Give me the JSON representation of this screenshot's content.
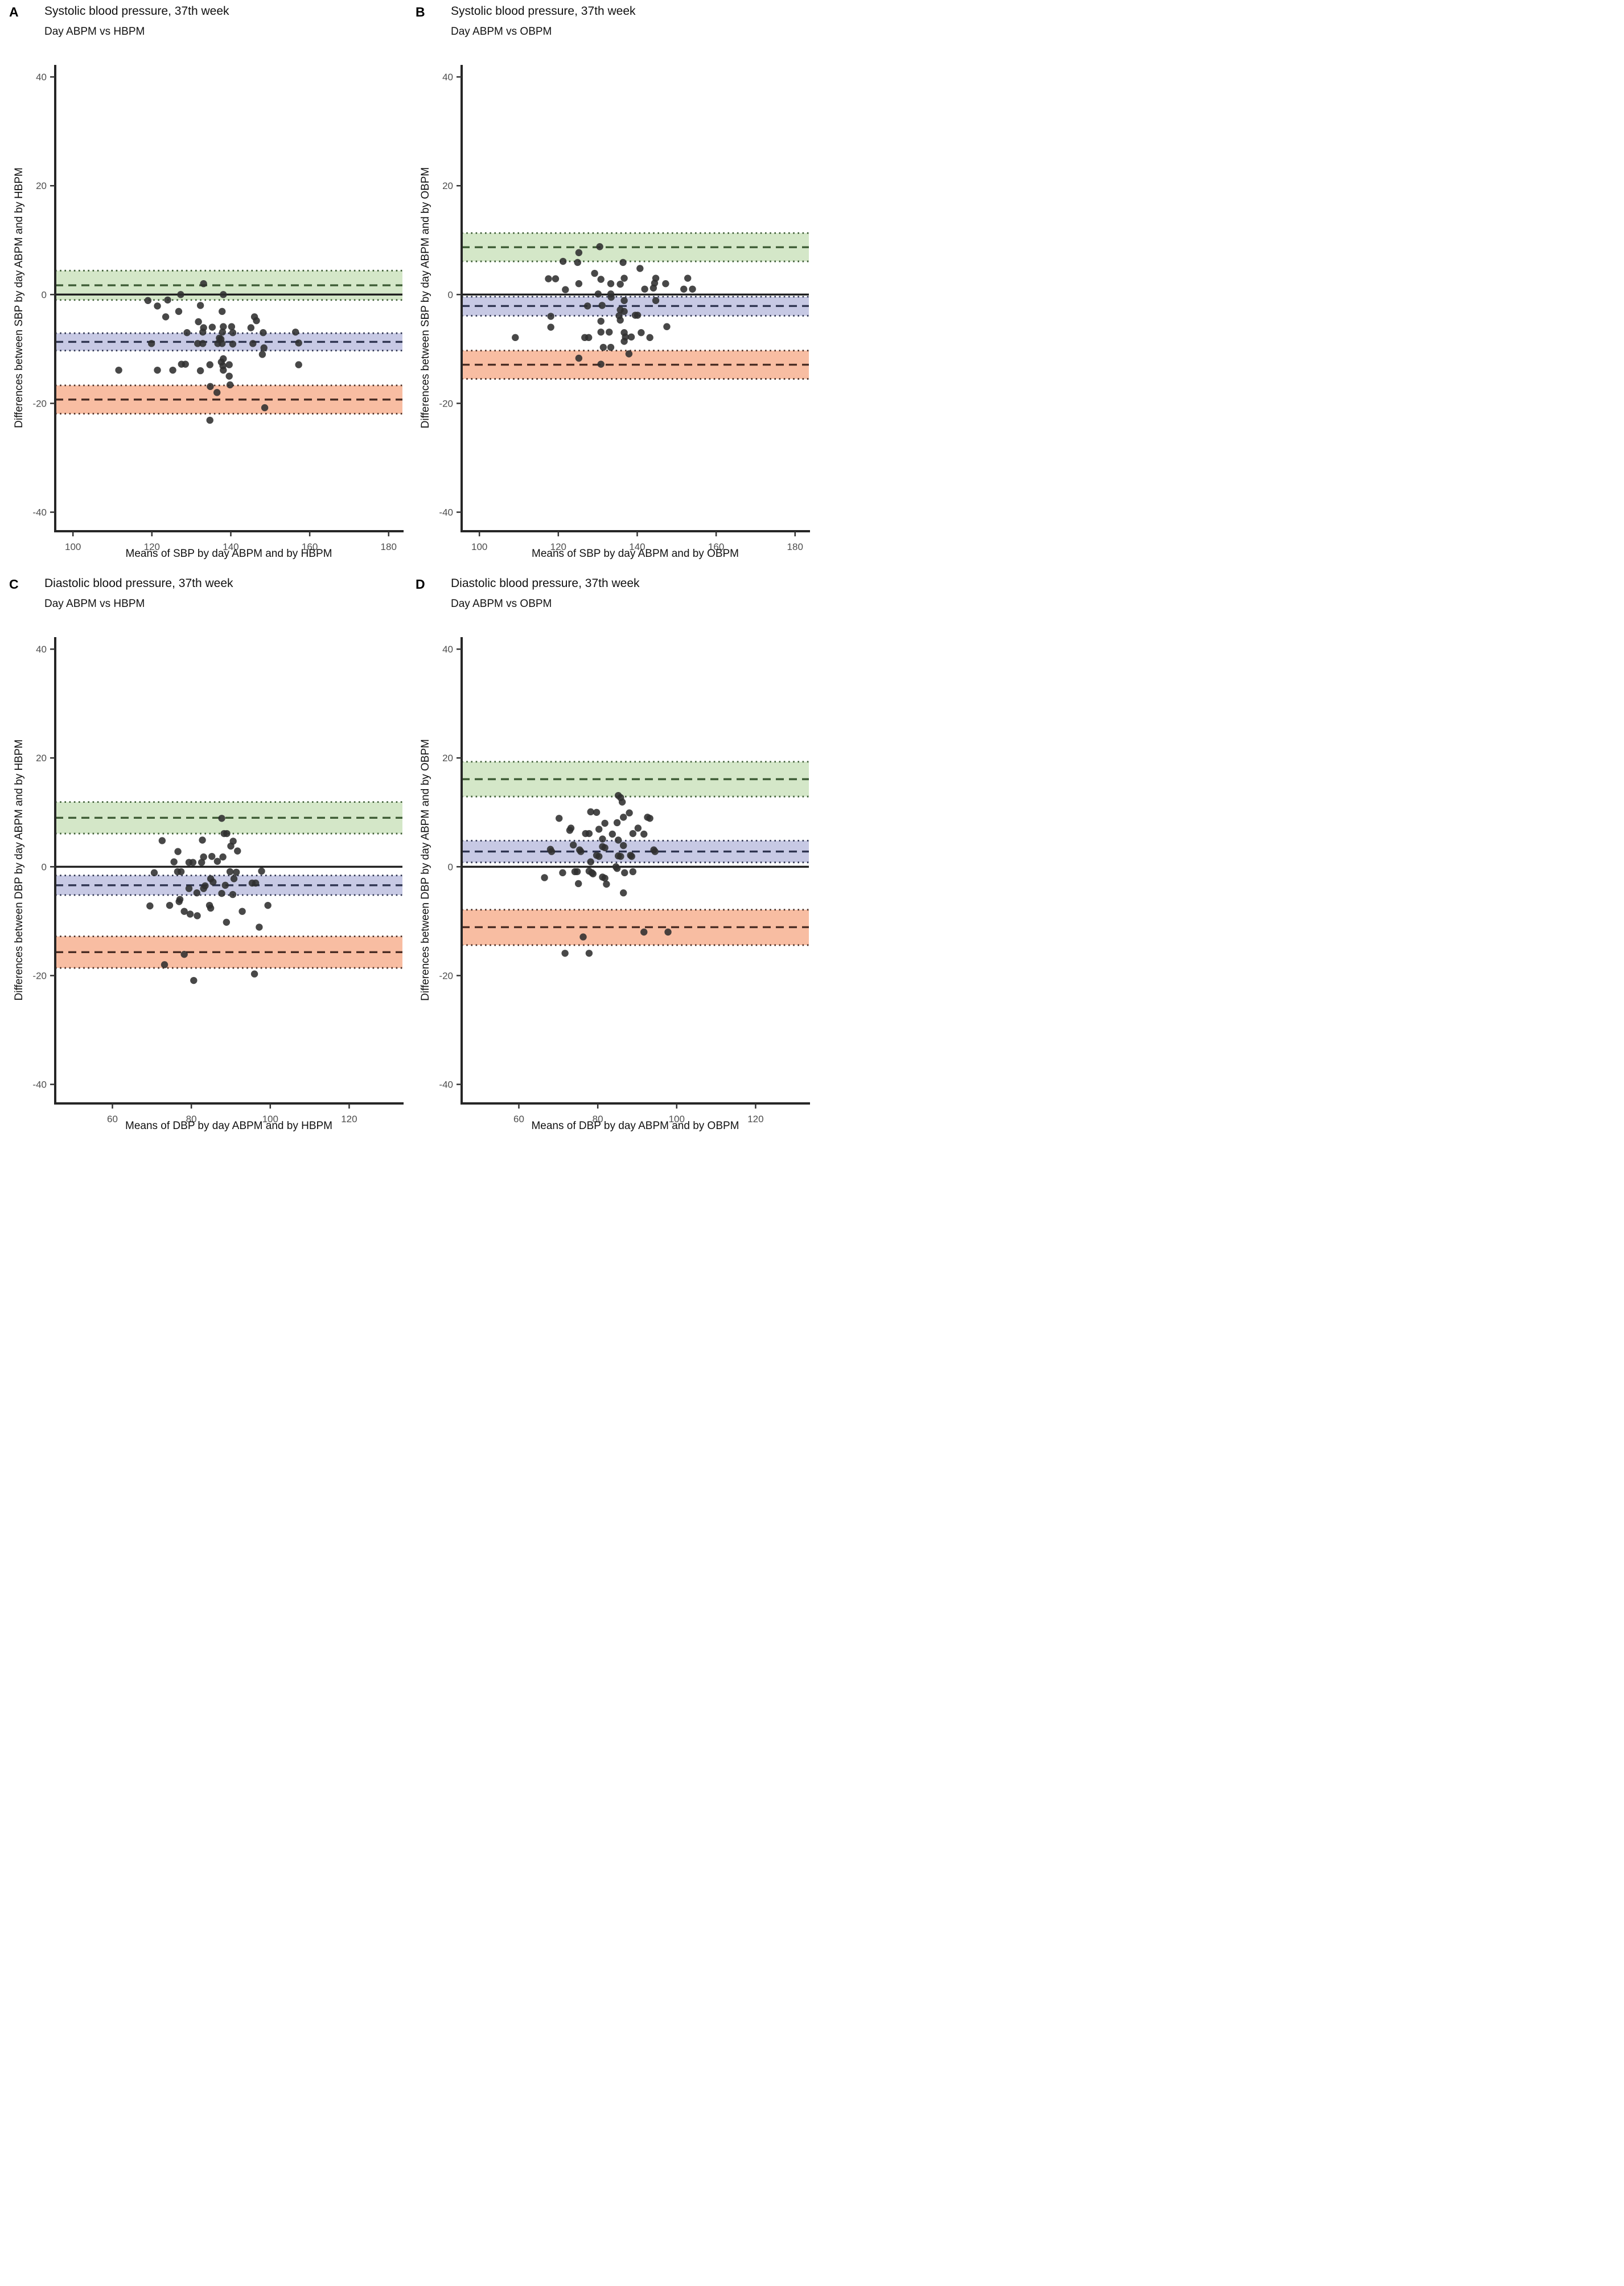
{
  "figure": {
    "background": "#ffffff",
    "point_color": "#2f2f2f",
    "axis_color": "#262626",
    "tick_label_color": "#4d4d4d",
    "zero_line_color": "#1f1f1f"
  },
  "chart_data": [
    {
      "panel_label": "A",
      "type": "scatter",
      "title": "Systolic blood pressure, 37th week",
      "subtitle": "Day ABPM vs HBPM",
      "xlabel": "Means of SBP by day ABPM and by HBPM",
      "ylabel": "Differences between SBP by day ABPM and by HBPM",
      "xlim": [
        95.5,
        183.5
      ],
      "ylim": [
        -43.5,
        42
      ],
      "x_ticks": [
        100,
        120,
        140,
        160,
        180
      ],
      "y_ticks": [
        40,
        20,
        0,
        -20,
        -40
      ],
      "zero_line": 0,
      "legend": "none",
      "grid": "off",
      "bands": {
        "upper_loa": {
          "mean": 1.7,
          "ci": [
            -1.0,
            4.4
          ],
          "fill": "#d4e7c8",
          "line": "#3d5c35"
        },
        "bias": {
          "mean": -8.7,
          "ci": [
            -10.3,
            -7.1
          ],
          "fill": "#c7c9e4",
          "line": "#2e3450"
        },
        "lower_loa": {
          "mean": -19.3,
          "ci": [
            -21.9,
            -16.7
          ],
          "fill": "#f8bda2",
          "line": "#4a2d24"
        }
      },
      "points": [
        [
          133.1,
          2
        ],
        [
          127.3,
          0
        ],
        [
          138.1,
          0
        ],
        [
          119,
          -1.1
        ],
        [
          124,
          -1
        ],
        [
          121.4,
          -2.1
        ],
        [
          132.3,
          -2
        ],
        [
          126.8,
          -3.1
        ],
        [
          137.8,
          -3.1
        ],
        [
          123.5,
          -4.1
        ],
        [
          146,
          -4.1
        ],
        [
          131.8,
          -5
        ],
        [
          146.5,
          -4.8
        ],
        [
          133.1,
          -6.1
        ],
        [
          135.3,
          -6
        ],
        [
          138.1,
          -5.9
        ],
        [
          140.2,
          -5.9
        ],
        [
          145.1,
          -6.1
        ],
        [
          132.9,
          -6.9
        ],
        [
          128.9,
          -7
        ],
        [
          137.9,
          -6.9
        ],
        [
          140.5,
          -7
        ],
        [
          148.2,
          -7
        ],
        [
          156.4,
          -6.9
        ],
        [
          137.1,
          -8
        ],
        [
          137.5,
          -8.2
        ],
        [
          119.9,
          -9
        ],
        [
          131.6,
          -9
        ],
        [
          132.9,
          -9
        ],
        [
          136.7,
          -9
        ],
        [
          137.8,
          -9
        ],
        [
          140.5,
          -9.1
        ],
        [
          145.6,
          -9
        ],
        [
          157.2,
          -8.9
        ],
        [
          148.4,
          -9.8
        ],
        [
          148,
          -11
        ],
        [
          138.1,
          -11.8
        ],
        [
          127.5,
          -12.8
        ],
        [
          128.5,
          -12.8
        ],
        [
          134.7,
          -12.9
        ],
        [
          137.6,
          -12.4
        ],
        [
          138,
          -13.1
        ],
        [
          139.6,
          -12.9
        ],
        [
          157.2,
          -12.9
        ],
        [
          111.6,
          -13.9
        ],
        [
          121.4,
          -13.9
        ],
        [
          125.3,
          -13.9
        ],
        [
          132.3,
          -14
        ],
        [
          138.1,
          -13.9
        ],
        [
          139.6,
          -15
        ],
        [
          134.8,
          -16.9
        ],
        [
          139.8,
          -16.6
        ],
        [
          136.5,
          -18
        ],
        [
          148.6,
          -20.8
        ],
        [
          134.7,
          -23.1
        ]
      ]
    },
    {
      "panel_label": "B",
      "type": "scatter",
      "title": "Systolic blood pressure, 37th week",
      "subtitle": "Day ABPM vs OBPM",
      "xlabel": "Means of SBP by day ABPM and by OBPM",
      "ylabel": "Differences between SBP by day ABPM and by OBPM",
      "xlim": [
        95.5,
        183.5
      ],
      "ylim": [
        -43.5,
        42
      ],
      "x_ticks": [
        100,
        120,
        140,
        160,
        180
      ],
      "y_ticks": [
        40,
        20,
        0,
        -20,
        -40
      ],
      "zero_line": 0,
      "legend": "none",
      "grid": "off",
      "bands": {
        "upper_loa": {
          "mean": 8.7,
          "ci": [
            6.1,
            11.3
          ],
          "fill": "#d4e7c8",
          "line": "#3d5c35"
        },
        "bias": {
          "mean": -2.1,
          "ci": [
            -3.9,
            -0.4
          ],
          "fill": "#c7c9e4",
          "line": "#2e3450"
        },
        "lower_loa": {
          "mean": -12.9,
          "ci": [
            -15.5,
            -10.3
          ],
          "fill": "#f8bda2",
          "line": "#4a2d24"
        }
      },
      "points": [
        [
          130.5,
          8.8
        ],
        [
          125.2,
          7.7
        ],
        [
          121.2,
          6.1
        ],
        [
          124.9,
          5.9
        ],
        [
          136.4,
          5.9
        ],
        [
          140.7,
          4.8
        ],
        [
          129.2,
          3.9
        ],
        [
          117.5,
          2.9
        ],
        [
          119.3,
          2.9
        ],
        [
          130.8,
          2.8
        ],
        [
          136.7,
          3
        ],
        [
          125.2,
          2
        ],
        [
          133.3,
          2
        ],
        [
          135.7,
          1.9
        ],
        [
          144.7,
          3
        ],
        [
          144.4,
          2.1
        ],
        [
          144.1,
          1.2
        ],
        [
          147.2,
          2
        ],
        [
          141.9,
          1
        ],
        [
          152.8,
          3
        ],
        [
          151.8,
          1
        ],
        [
          154,
          1
        ],
        [
          121.8,
          0.9
        ],
        [
          130.1,
          0.1
        ],
        [
          133.3,
          0.1
        ],
        [
          133.4,
          -0.5
        ],
        [
          136.7,
          -1.1
        ],
        [
          144.7,
          -1.1
        ],
        [
          127.4,
          -2.1
        ],
        [
          131.1,
          -2
        ],
        [
          135.7,
          -2.8
        ],
        [
          136.7,
          -3.1
        ],
        [
          135.4,
          -3.9
        ],
        [
          139.5,
          -3.8
        ],
        [
          140.1,
          -3.8
        ],
        [
          135.7,
          -4.7
        ],
        [
          118.1,
          -4
        ],
        [
          130.8,
          -4.9
        ],
        [
          118.1,
          -6
        ],
        [
          147.5,
          -5.9
        ],
        [
          130.8,
          -6.9
        ],
        [
          132.9,
          -6.9
        ],
        [
          136.7,
          -7
        ],
        [
          141,
          -7
        ],
        [
          126.7,
          -7.9
        ],
        [
          127.7,
          -7.9
        ],
        [
          137,
          -7.8
        ],
        [
          138.5,
          -7.8
        ],
        [
          143.2,
          -7.9
        ],
        [
          109.1,
          -7.9
        ],
        [
          136.7,
          -8.6
        ],
        [
          131.4,
          -9.7
        ],
        [
          133.3,
          -9.7
        ],
        [
          137.9,
          -10.9
        ],
        [
          125.2,
          -11.7
        ],
        [
          130.8,
          -12.8
        ]
      ]
    },
    {
      "panel_label": "C",
      "type": "scatter",
      "title": "Diastolic blood pressure, 37th week",
      "subtitle": "Day ABPM vs HBPM",
      "xlabel": "Means of DBP by day ABPM and by HBPM",
      "ylabel": "Differences between DBP by day ABPM and by HBPM",
      "xlim": [
        45.5,
        133.5
      ],
      "ylim": [
        -43.5,
        42
      ],
      "x_ticks": [
        60,
        80,
        100,
        120
      ],
      "y_ticks": [
        40,
        20,
        0,
        -20,
        -40
      ],
      "zero_line": 0,
      "legend": "none",
      "grid": "off",
      "bands": {
        "upper_loa": {
          "mean": 9.0,
          "ci": [
            6.1,
            11.9
          ],
          "fill": "#d4e7c8",
          "line": "#3d5c35"
        },
        "bias": {
          "mean": -3.4,
          "ci": [
            -5.2,
            -1.6
          ],
          "fill": "#c7c9e4",
          "line": "#2e3450"
        },
        "lower_loa": {
          "mean": -15.7,
          "ci": [
            -18.6,
            -12.8
          ],
          "fill": "#f8bda2",
          "line": "#4a2d24"
        }
      },
      "points": [
        [
          87.7,
          8.9
        ],
        [
          88.3,
          6.1
        ],
        [
          89,
          6.1
        ],
        [
          72.6,
          4.8
        ],
        [
          82.8,
          4.9
        ],
        [
          90.6,
          4.7
        ],
        [
          90,
          3.8
        ],
        [
          91.7,
          2.9
        ],
        [
          76.6,
          2.8
        ],
        [
          83.1,
          1.8
        ],
        [
          85.2,
          1.9
        ],
        [
          88,
          1.8
        ],
        [
          86.6,
          1
        ],
        [
          75.6,
          0.9
        ],
        [
          79.4,
          0.8
        ],
        [
          80.4,
          0.8
        ],
        [
          82.6,
          0.8
        ],
        [
          70.6,
          -1.1
        ],
        [
          76.5,
          -0.9
        ],
        [
          77.4,
          -0.9
        ],
        [
          89.8,
          -0.9
        ],
        [
          91.4,
          -1
        ],
        [
          97.8,
          -0.8
        ],
        [
          84.9,
          -2.2
        ],
        [
          85.5,
          -2.8
        ],
        [
          90.8,
          -2.2
        ],
        [
          79.4,
          -4
        ],
        [
          83.1,
          -4
        ],
        [
          83.5,
          -3.5
        ],
        [
          88.6,
          -3.4
        ],
        [
          95.4,
          -3
        ],
        [
          96.3,
          -3
        ],
        [
          81.4,
          -4.8
        ],
        [
          87.7,
          -4.9
        ],
        [
          90.5,
          -5.1
        ],
        [
          77.1,
          -6
        ],
        [
          69.5,
          -7.2
        ],
        [
          74.5,
          -7.1
        ],
        [
          76.9,
          -6.4
        ],
        [
          84.6,
          -7.1
        ],
        [
          84.9,
          -7.6
        ],
        [
          78.2,
          -8.2
        ],
        [
          79.7,
          -8.7
        ],
        [
          81.5,
          -9
        ],
        [
          92.9,
          -8.2
        ],
        [
          99.4,
          -7.1
        ],
        [
          88.9,
          -10.2
        ],
        [
          97.2,
          -11.1
        ],
        [
          78.2,
          -16.1
        ],
        [
          73.2,
          -18
        ],
        [
          96,
          -19.7
        ],
        [
          80.6,
          -20.9
        ]
      ]
    },
    {
      "panel_label": "D",
      "type": "scatter",
      "title": "Diastolic blood pressure, 37th week",
      "subtitle": "Day ABPM vs OBPM",
      "xlabel": "Means of DBP by day ABPM and by OBPM",
      "ylabel": "Differences between DBP by day ABPM and by OBPM",
      "xlim": [
        45.5,
        133.5
      ],
      "ylim": [
        -43.5,
        42
      ],
      "x_ticks": [
        60,
        80,
        100,
        120
      ],
      "y_ticks": [
        40,
        20,
        0,
        -20,
        -40
      ],
      "zero_line": 0,
      "legend": "none",
      "grid": "off",
      "bands": {
        "upper_loa": {
          "mean": 16.1,
          "ci": [
            12.9,
            19.3
          ],
          "fill": "#d4e7c8",
          "line": "#3d5c35"
        },
        "bias": {
          "mean": 2.8,
          "ci": [
            0.8,
            4.8
          ],
          "fill": "#c7c9e4",
          "line": "#2e3450"
        },
        "lower_loa": {
          "mean": -11.1,
          "ci": [
            -14.4,
            -7.9
          ],
          "fill": "#f8bda2",
          "line": "#4a2d24"
        }
      },
      "points": [
        [
          85.2,
          13.1
        ],
        [
          85.8,
          12.7
        ],
        [
          86.2,
          11.9
        ],
        [
          78.2,
          10.1
        ],
        [
          79.7,
          10
        ],
        [
          88,
          9.9
        ],
        [
          70.2,
          8.9
        ],
        [
          86.5,
          9.1
        ],
        [
          92.6,
          9.1
        ],
        [
          93.2,
          8.9
        ],
        [
          84.9,
          8.1
        ],
        [
          81.8,
          8
        ],
        [
          73.2,
          7.1
        ],
        [
          72.9,
          6.7
        ],
        [
          80.3,
          6.9
        ],
        [
          76.9,
          6.1
        ],
        [
          77.8,
          6.1
        ],
        [
          83.7,
          6
        ],
        [
          90.2,
          7.1
        ],
        [
          88.9,
          6.1
        ],
        [
          91.7,
          6
        ],
        [
          81.2,
          5.1
        ],
        [
          85.2,
          4.9
        ],
        [
          73.8,
          4
        ],
        [
          81.2,
          3.7
        ],
        [
          81.8,
          3.5
        ],
        [
          86.5,
          3.9
        ],
        [
          75.4,
          3.1
        ],
        [
          75.7,
          2.8
        ],
        [
          68,
          3.2
        ],
        [
          68.3,
          2.8
        ],
        [
          94.2,
          3.1
        ],
        [
          94.5,
          2.8
        ],
        [
          79.7,
          2.1
        ],
        [
          80.3,
          1.9
        ],
        [
          85.2,
          2
        ],
        [
          85.8,
          1.9
        ],
        [
          88.3,
          2.1
        ],
        [
          88.6,
          1.9
        ],
        [
          78.2,
          0.9
        ],
        [
          84.6,
          0
        ],
        [
          84.9,
          -0.3
        ],
        [
          71.1,
          -1.1
        ],
        [
          74.2,
          -0.9
        ],
        [
          74.8,
          -0.9
        ],
        [
          77.8,
          -0.8
        ],
        [
          78.5,
          -1.1
        ],
        [
          78.8,
          -1.3
        ],
        [
          81.2,
          -1.9
        ],
        [
          81.8,
          -2.1
        ],
        [
          66.5,
          -2
        ],
        [
          86.8,
          -1.1
        ],
        [
          88.9,
          -0.9
        ],
        [
          75.1,
          -3.1
        ],
        [
          82.2,
          -3.2
        ],
        [
          86.5,
          -4.8
        ],
        [
          91.7,
          -12
        ],
        [
          97.8,
          -12
        ],
        [
          76.3,
          -12.9
        ],
        [
          71.7,
          -15.9
        ],
        [
          77.8,
          -15.9
        ]
      ]
    }
  ]
}
